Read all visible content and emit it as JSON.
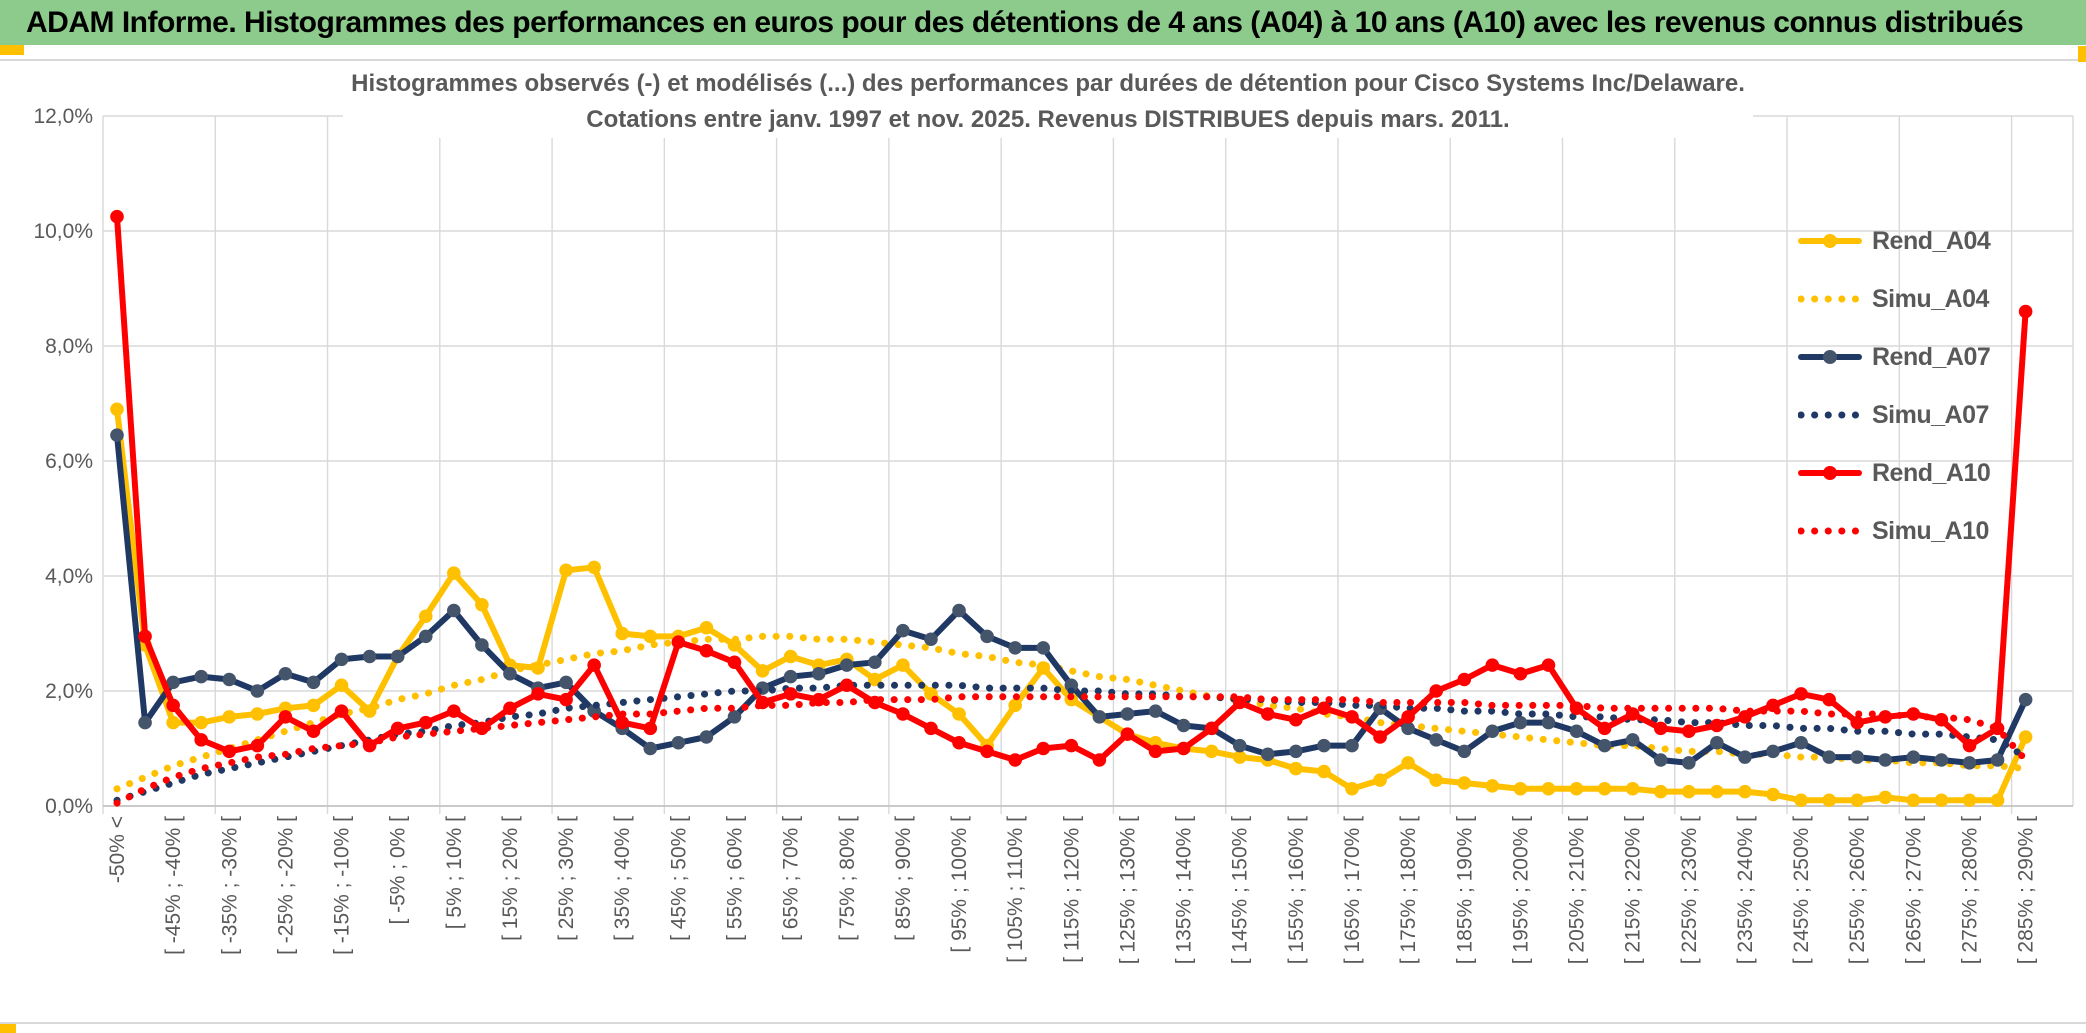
{
  "banner": {
    "title": "ADAM Informe. Histogrammes des performances en euros pour des détentions de 4 ans (A04) à 10 ans (A10) avec les revenus connus distribués",
    "bg_color": "#8CCB8C",
    "accent_color": "#FFC000"
  },
  "chart_data": {
    "type": "line",
    "title": "Histogrammes observés (-) et modélisés (...) des performances par durées de détention pour Cisco Systems Inc/Delaware.",
    "subtitle": "Cotations entre janv. 1997 et nov. 2025. Revenus DISTRIBUES depuis mars. 2011.",
    "ylabel": "",
    "xlabel": "",
    "ylim": [
      0,
      12
    ],
    "grid": true,
    "legend_position": "right-inside",
    "y_tick_labels": [
      "0,0%",
      "2,0%",
      "4,0%",
      "6,0%",
      "8,0%",
      "10,0%",
      "12,0%"
    ],
    "x_tick_labels": [
      "-50% <",
      "[ -45% ; -40% [",
      "[ -35% ; -30% [",
      "[ -25% ; -20% [",
      "[ -15% ; -10% [",
      "[ -5% ; 0% [",
      "[ 5% ; 10% [",
      "[ 15% ; 20% [",
      "[ 25% ; 30% [",
      "[ 35% ; 40% [",
      "[ 45% ; 50% [",
      "[ 55% ; 60% [",
      "[ 65% ; 70% [",
      "[ 75% ; 80% [",
      "[ 85% ; 90% [",
      "[ 95% ; 100% [",
      "[ 105% ; 110% [",
      "[ 115% ; 120% [",
      "[ 125% ; 130% [",
      "[ 135% ; 140% [",
      "[ 145% ; 150% [",
      "[ 155% ; 160% [",
      "[ 165% ; 170% [",
      "[ 175% ; 180% [",
      "[ 185% ; 190% [",
      "[ 195% ; 200% [",
      "[ 205% ; 210% [",
      "[ 215% ; 220% [",
      "[ 225% ; 230% [",
      "[ 235% ; 240% [",
      "[ 245% ; 250% [",
      "[ 255% ; 260% [",
      "[ 265% ; 270% [",
      "[ 275% ; 280% [",
      "[ 285% ; 290% ["
    ],
    "x_label_every_n_bins": 2,
    "n_bins": 69,
    "bin_width_pct": 5,
    "colors": {
      "A04": "#FFC000",
      "A07": "#1F3864",
      "A07_marker": "#44546A",
      "A10": "#FF0000",
      "grid": "#D9D9D9",
      "axis_text": "#595959"
    },
    "series": [
      {
        "name": "Rend_A04",
        "style": "solid",
        "color": "#FFC000",
        "marker": "#FFC000",
        "values": [
          6.9,
          2.8,
          1.45,
          1.45,
          1.55,
          1.6,
          1.7,
          1.75,
          2.1,
          1.65,
          2.6,
          3.3,
          4.05,
          3.5,
          2.45,
          2.4,
          4.1,
          4.15,
          3.0,
          2.95,
          2.95,
          3.1,
          2.8,
          2.35,
          2.6,
          2.45,
          2.55,
          2.2,
          2.45,
          1.95,
          1.6,
          1.05,
          1.75,
          2.4,
          1.85,
          1.55,
          1.25,
          1.1,
          1.0,
          0.95,
          0.85,
          0.8,
          0.65,
          0.6,
          0.3,
          0.45,
          0.75,
          0.45,
          0.4,
          0.35,
          0.3,
          0.3,
          0.3,
          0.3,
          0.3,
          0.25,
          0.25,
          0.25,
          0.25,
          0.2,
          0.1,
          0.1,
          0.1,
          0.15,
          0.1,
          0.1,
          0.1,
          0.1,
          1.2
        ]
      },
      {
        "name": "Simu_A04",
        "style": "dotted",
        "color": "#FFC000",
        "marker": "none",
        "values": [
          0.3,
          0.5,
          0.7,
          0.85,
          1.0,
          1.15,
          1.3,
          1.45,
          1.6,
          1.7,
          1.85,
          1.95,
          2.1,
          2.2,
          2.35,
          2.45,
          2.55,
          2.65,
          2.7,
          2.8,
          2.85,
          2.9,
          2.9,
          2.95,
          2.95,
          2.9,
          2.9,
          2.85,
          2.8,
          2.75,
          2.65,
          2.6,
          2.5,
          2.45,
          2.35,
          2.25,
          2.2,
          2.1,
          2.0,
          1.9,
          1.85,
          1.75,
          1.7,
          1.6,
          1.55,
          1.45,
          1.4,
          1.35,
          1.3,
          1.25,
          1.2,
          1.15,
          1.1,
          1.05,
          1.05,
          1.0,
          0.95,
          0.95,
          0.9,
          0.9,
          0.85,
          0.85,
          0.8,
          0.8,
          0.75,
          0.75,
          0.7,
          0.7,
          0.65
        ]
      },
      {
        "name": "Rend_A07",
        "style": "solid",
        "color": "#1F3864",
        "marker": "#44546A",
        "values": [
          6.45,
          1.45,
          2.15,
          2.25,
          2.2,
          2.0,
          2.3,
          2.15,
          2.55,
          2.6,
          2.6,
          2.95,
          3.4,
          2.8,
          2.3,
          2.05,
          2.15,
          1.65,
          1.35,
          1.0,
          1.1,
          1.2,
          1.55,
          2.05,
          2.25,
          2.3,
          2.45,
          2.5,
          3.05,
          2.9,
          3.4,
          2.95,
          2.75,
          2.75,
          2.1,
          1.55,
          1.6,
          1.65,
          1.4,
          1.35,
          1.05,
          0.9,
          0.95,
          1.05,
          1.05,
          1.7,
          1.35,
          1.15,
          0.95,
          1.3,
          1.45,
          1.45,
          1.3,
          1.05,
          1.15,
          0.8,
          0.75,
          1.1,
          0.85,
          0.95,
          1.1,
          0.85,
          0.85,
          0.8,
          0.85,
          0.8,
          0.75,
          0.8,
          1.85
        ]
      },
      {
        "name": "Simu_A07",
        "style": "dotted",
        "color": "#1F3864",
        "marker": "none",
        "values": [
          0.1,
          0.25,
          0.4,
          0.55,
          0.65,
          0.75,
          0.85,
          0.95,
          1.05,
          1.15,
          1.25,
          1.3,
          1.4,
          1.45,
          1.55,
          1.6,
          1.7,
          1.75,
          1.8,
          1.85,
          1.9,
          1.95,
          2.0,
          2.0,
          2.05,
          2.05,
          2.1,
          2.1,
          2.1,
          2.1,
          2.1,
          2.05,
          2.05,
          2.05,
          2.0,
          2.0,
          1.95,
          1.95,
          1.9,
          1.9,
          1.85,
          1.85,
          1.8,
          1.8,
          1.75,
          1.75,
          1.7,
          1.7,
          1.65,
          1.65,
          1.6,
          1.6,
          1.55,
          1.55,
          1.5,
          1.5,
          1.45,
          1.45,
          1.4,
          1.4,
          1.35,
          1.35,
          1.3,
          1.3,
          1.25,
          1.25,
          1.2,
          1.15,
          0.85
        ]
      },
      {
        "name": "Rend_A10",
        "style": "solid",
        "color": "#FF0000",
        "marker": "#FF0000",
        "values": [
          10.25,
          2.95,
          1.75,
          1.15,
          0.95,
          1.05,
          1.55,
          1.3,
          1.65,
          1.05,
          1.35,
          1.45,
          1.65,
          1.35,
          1.7,
          1.95,
          1.85,
          2.45,
          1.45,
          1.35,
          2.85,
          2.7,
          2.5,
          1.8,
          1.95,
          1.85,
          2.1,
          1.8,
          1.6,
          1.35,
          1.1,
          0.95,
          0.8,
          1.0,
          1.05,
          0.8,
          1.25,
          0.95,
          1.0,
          1.35,
          1.8,
          1.6,
          1.5,
          1.7,
          1.55,
          1.2,
          1.55,
          2.0,
          2.2,
          2.45,
          2.3,
          2.45,
          1.7,
          1.35,
          1.6,
          1.35,
          1.3,
          1.4,
          1.55,
          1.75,
          1.95,
          1.85,
          1.45,
          1.55,
          1.6,
          1.5,
          1.05,
          1.35,
          8.6
        ]
      },
      {
        "name": "Simu_A10",
        "style": "dotted",
        "color": "#FF0000",
        "marker": "none",
        "values": [
          0.05,
          0.3,
          0.5,
          0.65,
          0.75,
          0.85,
          0.9,
          1.0,
          1.05,
          1.1,
          1.2,
          1.25,
          1.3,
          1.35,
          1.4,
          1.45,
          1.5,
          1.55,
          1.6,
          1.6,
          1.65,
          1.7,
          1.7,
          1.75,
          1.75,
          1.8,
          1.8,
          1.85,
          1.85,
          1.85,
          1.9,
          1.9,
          1.9,
          1.9,
          1.9,
          1.9,
          1.9,
          1.9,
          1.9,
          1.9,
          1.9,
          1.85,
          1.85,
          1.85,
          1.85,
          1.8,
          1.8,
          1.8,
          1.8,
          1.75,
          1.75,
          1.75,
          1.75,
          1.7,
          1.7,
          1.7,
          1.7,
          1.7,
          1.65,
          1.65,
          1.65,
          1.6,
          1.6,
          1.6,
          1.55,
          1.55,
          1.5,
          1.35,
          0.8
        ]
      }
    ]
  }
}
